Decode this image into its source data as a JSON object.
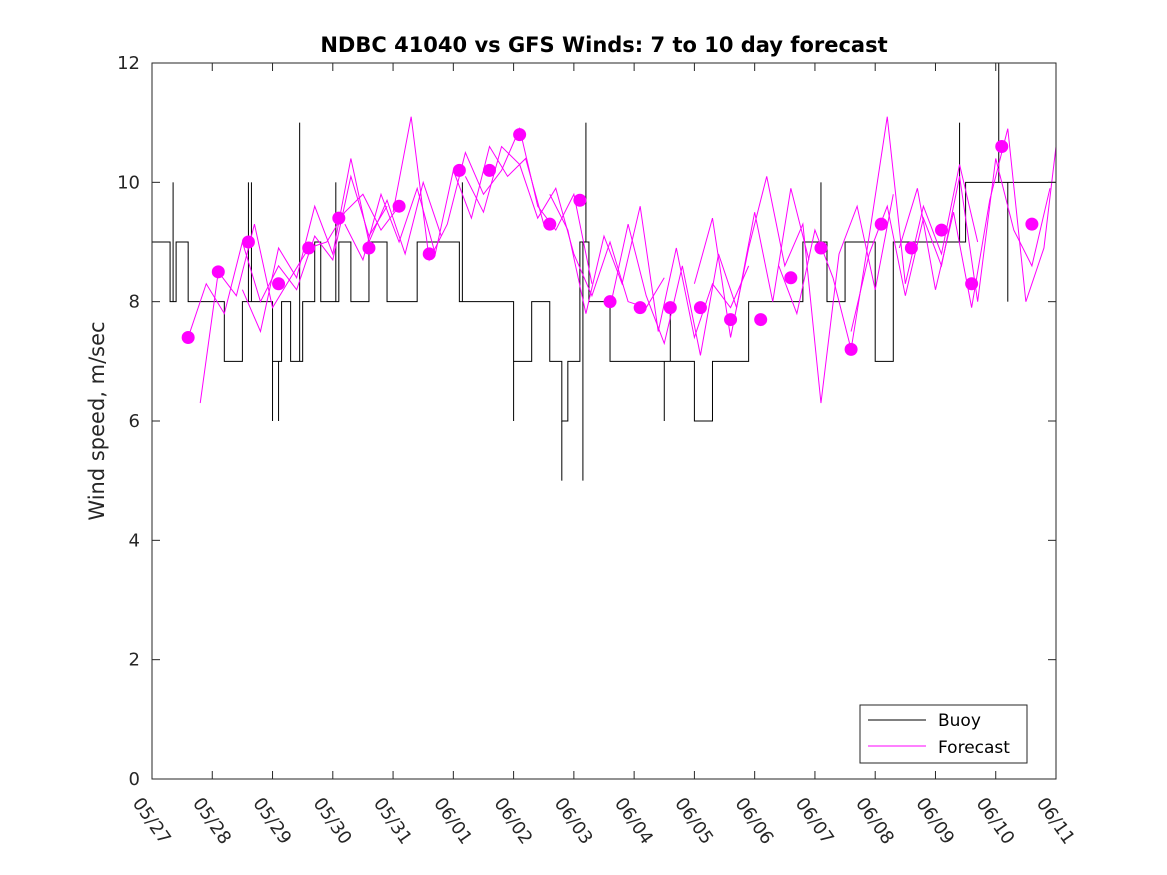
{
  "chart_data": {
    "type": "line",
    "title": "NDBC 41040 vs GFS Winds: 7 to 10 day forecast",
    "xlabel": "",
    "ylabel": "Wind speed, m/sec",
    "xlim": [
      "05/27",
      "06/11"
    ],
    "ylim": [
      0,
      12
    ],
    "x_ticks": [
      "05/27",
      "05/28",
      "05/29",
      "05/30",
      "05/31",
      "06/01",
      "06/02",
      "06/03",
      "06/04",
      "06/05",
      "06/06",
      "06/07",
      "06/08",
      "06/09",
      "06/10",
      "06/11"
    ],
    "y_ticks": [
      0,
      2,
      4,
      6,
      8,
      10,
      12
    ],
    "grid": false,
    "legend": {
      "position": "bottom-right",
      "entries": [
        "Buoy",
        "Forecast"
      ]
    },
    "colors": {
      "buoy": "#000000",
      "forecast": "#ff00ff"
    },
    "series": [
      {
        "name": "Buoy",
        "kind": "step",
        "x_days": [
          0.0,
          0.3,
          0.4,
          0.6,
          1.0,
          1.2,
          1.5,
          1.8,
          2.0,
          2.15,
          2.3,
          2.5,
          2.7,
          2.8,
          3.0,
          3.1,
          3.3,
          3.6,
          3.9,
          4.1,
          4.4,
          4.7,
          5.0,
          5.1,
          5.3,
          5.5,
          5.8,
          6.0,
          6.3,
          6.6,
          6.8,
          6.9,
          7.1,
          7.25,
          7.4,
          7.6,
          7.8,
          8.0,
          8.3,
          8.6,
          8.8,
          9.0,
          9.3,
          9.6,
          9.9,
          10.2,
          10.5,
          10.8,
          11.0,
          11.2,
          11.5,
          11.8,
          12.0,
          12.3,
          12.6,
          12.9,
          13.2,
          13.5,
          13.8,
          14.0,
          14.3,
          14.6,
          15.0
        ],
        "values": [
          9,
          8,
          9,
          8,
          8,
          7,
          8,
          8,
          7,
          8,
          7,
          8,
          9,
          8,
          8,
          9,
          8,
          9,
          8,
          8,
          9,
          9,
          9,
          8,
          8,
          8,
          8,
          7,
          8,
          7,
          6,
          7,
          9,
          8,
          8,
          7,
          7,
          7,
          7,
          7,
          7,
          6,
          7,
          7,
          8,
          8,
          8,
          9,
          9,
          8,
          9,
          9,
          7,
          9,
          9,
          9,
          9,
          10,
          10,
          10,
          10,
          10,
          10
        ],
        "spikes": [
          {
            "x": 0.35,
            "y": 10
          },
          {
            "x": 1.6,
            "y": 10
          },
          {
            "x": 1.65,
            "y": 10
          },
          {
            "x": 2.0,
            "y": 6
          },
          {
            "x": 2.1,
            "y": 6
          },
          {
            "x": 2.45,
            "y": 11
          },
          {
            "x": 3.05,
            "y": 10
          },
          {
            "x": 5.15,
            "y": 10
          },
          {
            "x": 6.0,
            "y": 6
          },
          {
            "x": 6.8,
            "y": 5
          },
          {
            "x": 7.15,
            "y": 5
          },
          {
            "x": 7.2,
            "y": 11
          },
          {
            "x": 8.5,
            "y": 6
          },
          {
            "x": 8.6,
            "y": 8
          },
          {
            "x": 9.25,
            "y": 6
          },
          {
            "x": 11.1,
            "y": 10
          },
          {
            "x": 13.4,
            "y": 11
          },
          {
            "x": 14.05,
            "y": 12
          },
          {
            "x": 14.2,
            "y": 8
          }
        ]
      },
      {
        "name": "Forecast",
        "kind": "lines",
        "runs": [
          {
            "x": [
              0.6,
              0.9,
              1.2,
              1.5,
              1.8,
              2.1,
              2.4,
              2.7,
              3.0,
              3.3,
              3.6,
              3.9
            ],
            "y": [
              7.4,
              8.3,
              7.8,
              9.0,
              8.0,
              8.6,
              8.2,
              9.1,
              8.7,
              10.1,
              9.1,
              9.6
            ]
          },
          {
            "x": [
              0.8,
              1.1,
              1.4,
              1.7,
              2.0,
              2.3,
              2.6,
              2.9,
              3.2,
              3.5,
              3.8,
              4.1
            ],
            "y": [
              6.3,
              8.5,
              8.1,
              9.3,
              7.9,
              8.4,
              8.9,
              9.0,
              9.5,
              9.8,
              9.2,
              9.6
            ]
          },
          {
            "x": [
              1.5,
              1.8,
              2.1,
              2.4,
              2.7,
              3.0,
              3.3,
              3.6,
              3.9,
              4.2,
              4.5,
              4.8
            ],
            "y": [
              8.2,
              7.5,
              8.9,
              8.4,
              9.6,
              8.8,
              10.4,
              9.0,
              9.7,
              8.8,
              10.0,
              9.1
            ]
          },
          {
            "x": [
              3.2,
              3.5,
              3.8,
              4.1,
              4.4,
              4.7,
              5.0,
              5.3,
              5.6,
              5.9,
              6.2,
              6.5
            ],
            "y": [
              9.3,
              8.7,
              9.8,
              9.0,
              9.9,
              8.8,
              10.2,
              9.4,
              10.6,
              10.1,
              10.4,
              9.3
            ]
          },
          {
            "x": [
              4.0,
              4.3,
              4.6,
              4.9,
              5.2,
              5.5,
              5.8,
              6.1,
              6.4,
              6.7,
              7.0,
              7.3
            ],
            "y": [
              9.5,
              11.1,
              8.7,
              9.3,
              10.5,
              9.8,
              10.2,
              10.9,
              9.6,
              9.2,
              9.8,
              8.3
            ]
          },
          {
            "x": [
              5.2,
              5.5,
              5.8,
              6.1,
              6.4,
              6.7,
              7.0,
              7.3,
              7.6,
              7.9,
              8.2,
              8.5
            ],
            "y": [
              10.1,
              9.5,
              10.6,
              10.3,
              9.4,
              9.9,
              8.8,
              8.1,
              9.0,
              8.0,
              7.9,
              8.4
            ]
          },
          {
            "x": [
              6.6,
              6.9,
              7.2,
              7.5,
              7.8,
              8.1,
              8.4,
              8.7,
              9.0,
              9.3,
              9.6,
              9.9
            ],
            "y": [
              9.8,
              9.2,
              7.8,
              9.1,
              8.3,
              9.6,
              7.5,
              8.9,
              7.4,
              8.3,
              7.9,
              8.6
            ]
          },
          {
            "x": [
              7.6,
              7.9,
              8.2,
              8.5,
              8.8,
              9.1,
              9.4,
              9.7,
              10.0,
              10.3,
              10.6,
              10.9
            ],
            "y": [
              7.9,
              9.3,
              8.1,
              7.3,
              8.6,
              7.1,
              8.8,
              7.9,
              9.5,
              8.0,
              9.9,
              8.7
            ]
          },
          {
            "x": [
              9.0,
              9.3,
              9.6,
              9.9,
              10.2,
              10.5,
              10.8,
              11.1,
              11.4,
              11.7,
              12.0,
              12.3
            ],
            "y": [
              8.3,
              9.4,
              7.4,
              8.9,
              10.1,
              8.6,
              9.3,
              6.3,
              8.8,
              9.6,
              8.2,
              9.8
            ]
          },
          {
            "x": [
              10.4,
              10.7,
              11.0,
              11.3,
              11.6,
              11.9,
              12.2,
              12.5,
              12.8,
              13.1,
              13.4,
              13.7
            ],
            "y": [
              8.6,
              7.8,
              9.2,
              8.4,
              7.2,
              9.1,
              11.1,
              8.3,
              9.6,
              8.8,
              10.3,
              9.0
            ]
          },
          {
            "x": [
              11.6,
              11.9,
              12.2,
              12.5,
              12.8,
              13.1,
              13.4,
              13.7,
              14.0,
              14.3,
              14.6,
              14.9
            ],
            "y": [
              7.5,
              8.8,
              9.6,
              8.1,
              9.4,
              8.6,
              10.1,
              8.0,
              10.4,
              9.2,
              8.6,
              9.9
            ]
          },
          {
            "x": [
              12.4,
              12.7,
              13.0,
              13.3,
              13.6,
              13.9,
              14.2,
              14.5,
              14.8,
              15.0
            ],
            "y": [
              8.9,
              9.9,
              8.2,
              9.5,
              7.9,
              9.7,
              10.9,
              8.0,
              8.9,
              10.6
            ]
          }
        ],
        "markers": {
          "x": [
            0.6,
            1.1,
            1.6,
            2.1,
            2.6,
            3.1,
            3.6,
            4.1,
            4.6,
            5.1,
            5.6,
            6.1,
            6.6,
            7.1,
            7.6,
            8.1,
            8.6,
            9.1,
            9.6,
            10.1,
            10.6,
            11.1,
            11.6,
            12.1,
            12.6,
            13.1,
            13.6,
            14.1,
            14.6
          ],
          "y": [
            7.4,
            8.5,
            9.0,
            8.3,
            8.9,
            9.4,
            8.9,
            9.6,
            8.8,
            10.2,
            10.2,
            10.8,
            9.3,
            9.7,
            8.0,
            7.9,
            7.9,
            7.9,
            7.7,
            7.7,
            8.4,
            8.9,
            7.2,
            9.3,
            8.9,
            9.2,
            8.3,
            10.6,
            9.3
          ]
        }
      }
    ]
  }
}
